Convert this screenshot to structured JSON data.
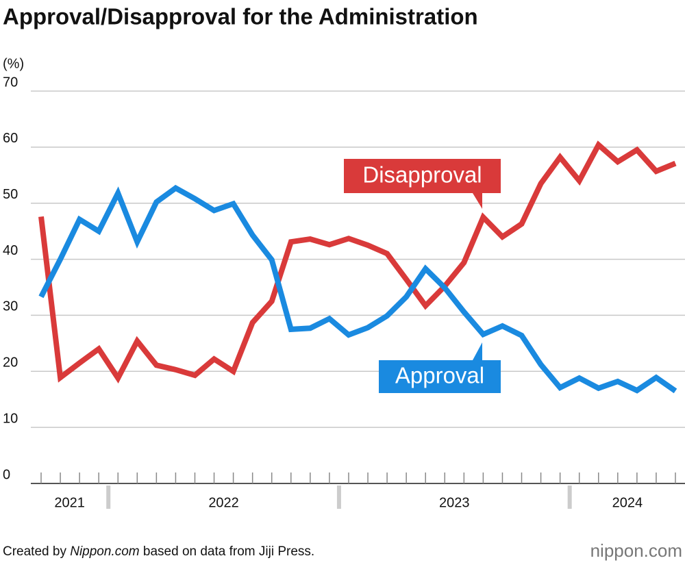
{
  "chart_data": {
    "type": "line",
    "title": "Approval/Disapproval for the Administration",
    "y_label": "(%)",
    "categories": [
      "2021",
      "2021",
      "2021",
      "2021",
      "2022",
      "2022",
      "2022",
      "2022",
      "2022",
      "2022",
      "2022",
      "2022",
      "2022",
      "2022",
      "2022",
      "2022",
      "2023",
      "2023",
      "2023",
      "2023",
      "2023",
      "2023",
      "2023",
      "2023",
      "2023",
      "2023",
      "2023",
      "2023",
      "2024",
      "2024",
      "2024",
      "2024",
      "2024",
      "2024"
    ],
    "series": [
      {
        "name": "Disapproval",
        "color": "#d93a3a",
        "values": [
          47.6,
          18.9,
          21.5,
          24,
          18.8,
          25.4,
          21.1,
          20.3,
          19.3,
          22.2,
          20,
          28.7,
          32.5,
          43.1,
          43.6,
          42.6,
          43.7,
          42.5,
          41,
          36.4,
          31.7,
          35.2,
          39.4,
          47.5,
          44,
          46.3,
          53.5,
          58.2,
          54,
          60.4,
          57.4,
          59.5,
          55.7,
          57.1
        ]
      },
      {
        "name": "Approval",
        "color": "#1a8ae0",
        "values": [
          33.3,
          40,
          47.1,
          45,
          51.8,
          43.1,
          50.2,
          52.7,
          50.8,
          48.7,
          49.9,
          44.3,
          39.9,
          27.5,
          27.7,
          29.4,
          26.5,
          27.8,
          29.9,
          33.3,
          38.3,
          34.9,
          30.6,
          26.6,
          28.1,
          26.4,
          21.2,
          17.1,
          18.8,
          17,
          18.2,
          16.6,
          18.9,
          16.5
        ]
      }
    ],
    "ylim": [
      0,
      70
    ],
    "yticks": [
      0,
      10,
      20,
      30,
      40,
      50,
      60,
      70
    ],
    "grid": true,
    "source": [
      "Created by ",
      "Nippon.com",
      " based on data from Jiji Press."
    ],
    "logo": "nippon.com"
  }
}
